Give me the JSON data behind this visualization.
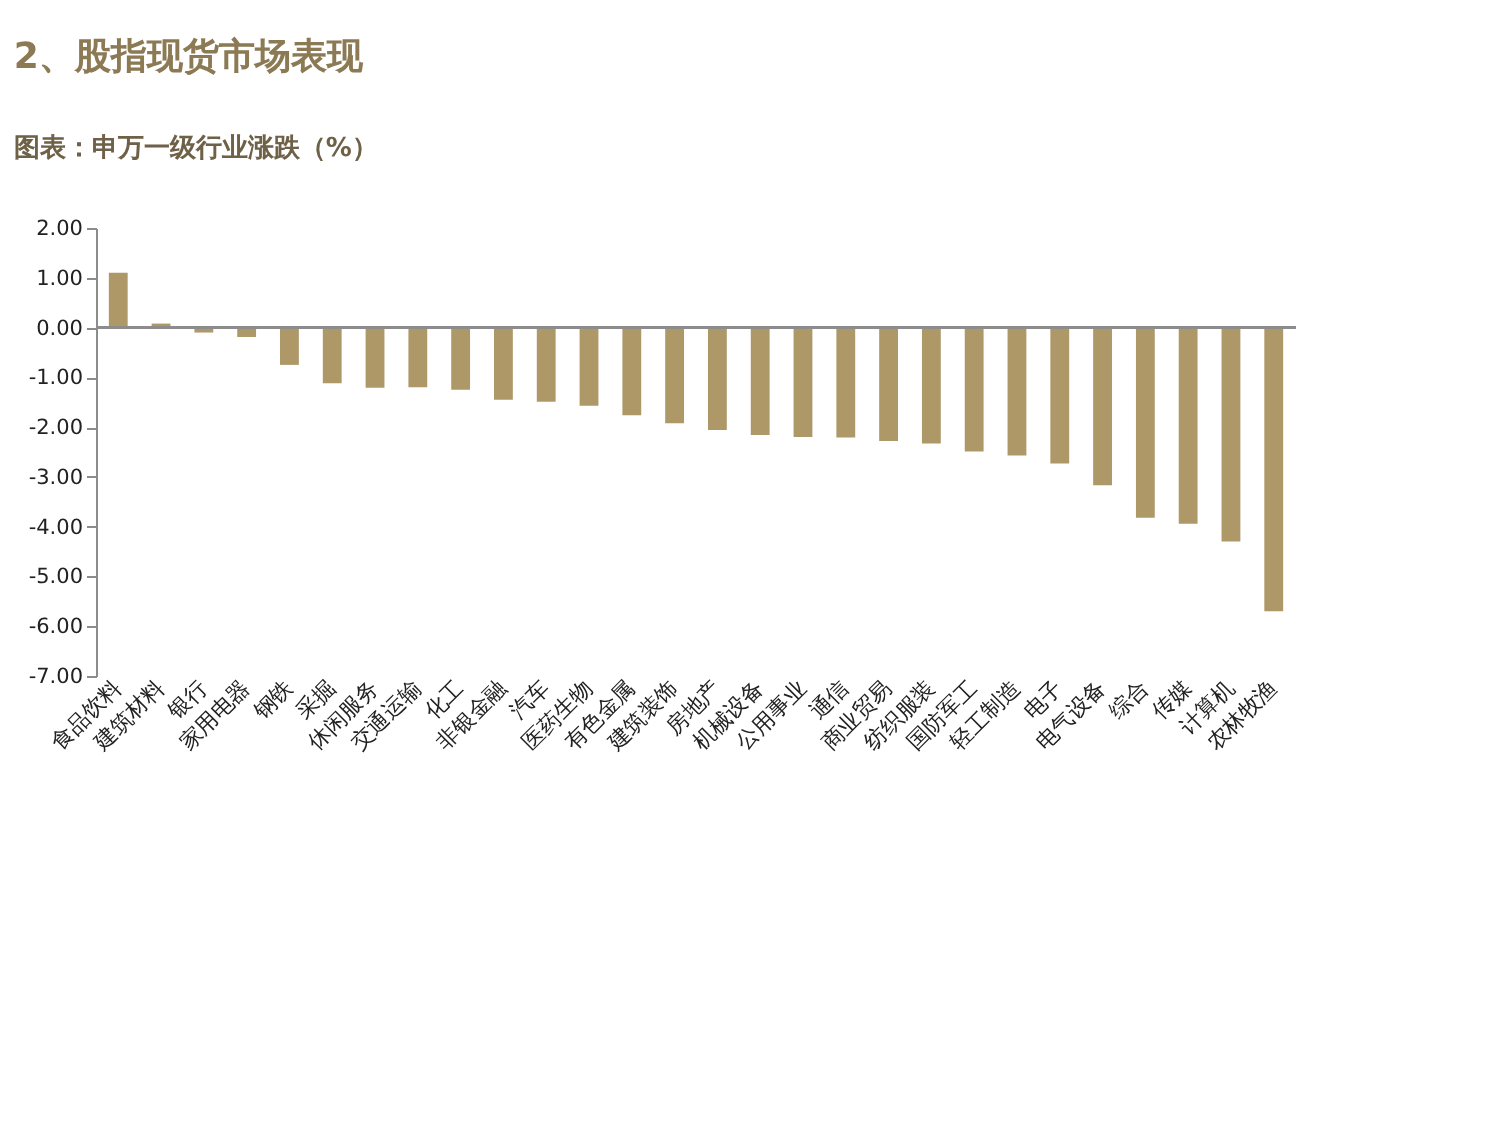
{
  "chart_data": {
    "type": "bar",
    "title": "2、股指现货市场表现",
    "subtitle": "图表：申万一级行业涨跌（%）",
    "categories": [
      "食品饮料",
      "建筑材料",
      "银行",
      "家用电器",
      "钢铁",
      "采掘",
      "休闲服务",
      "交通运输",
      "化工",
      "非银金融",
      "汽车",
      "医药生物",
      "有色金属",
      "建筑装饰",
      "房地产",
      "机械设备",
      "公用事业",
      "通信",
      "商业贸易",
      "纺织服装",
      "国防军工",
      "轻工制造",
      "电子",
      "电气设备",
      "综合",
      "传媒",
      "计算机",
      "农林牧渔"
    ],
    "values": [
      1.1,
      0.08,
      -0.1,
      -0.19,
      -0.75,
      -1.12,
      -1.21,
      -1.2,
      -1.25,
      -1.45,
      -1.49,
      -1.57,
      -1.76,
      -1.92,
      -2.06,
      -2.16,
      -2.2,
      -2.21,
      -2.28,
      -2.33,
      -2.49,
      -2.57,
      -2.73,
      -3.17,
      -3.82,
      -3.94,
      -4.3,
      -5.7
    ],
    "color": "#ae9868",
    "ylim": [
      -7,
      2
    ],
    "yticks": [
      {
        "value": 2,
        "label": "2.00"
      },
      {
        "value": 1,
        "label": "1.00"
      },
      {
        "value": 0,
        "label": "0.00"
      },
      {
        "value": -1,
        "label": "-1.00"
      },
      {
        "value": -2,
        "label": "-2.00"
      },
      {
        "value": -3,
        "label": "-3.00"
      },
      {
        "value": -4,
        "label": "-4.00"
      },
      {
        "value": -5,
        "label": "-5.00"
      },
      {
        "value": -6,
        "label": "-6.00"
      },
      {
        "value": -7,
        "label": "-7.00"
      }
    ]
  }
}
